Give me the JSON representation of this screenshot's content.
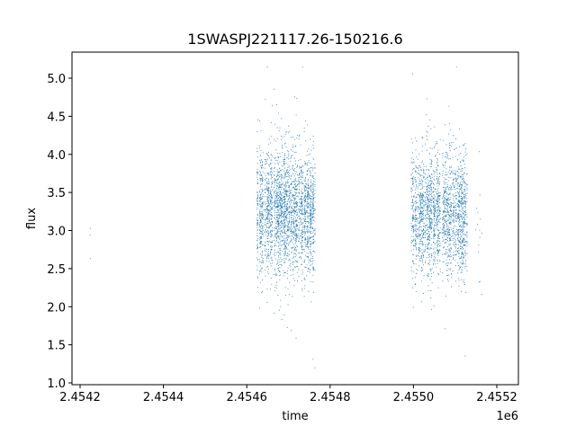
{
  "chart_data": {
    "type": "scatter",
    "title": "1SWASPJ221117.26-150216.6",
    "xlabel": "time",
    "ylabel": "flux",
    "x_offset_label": "1e6",
    "xlim": [
      2454185,
      2455215
    ],
    "ylim": [
      0.98,
      5.35
    ],
    "xticks": [
      2454200,
      2454400,
      2454600,
      2454800,
      2455000,
      2455200
    ],
    "xtick_labels": [
      "2.4542",
      "2.4544",
      "2.4546",
      "2.4548",
      "2.4550",
      "2.4552"
    ],
    "yticks": [
      1.0,
      1.5,
      2.0,
      2.5,
      3.0,
      3.5,
      4.0,
      4.5,
      5.0
    ],
    "ytick_labels": [
      "1.0",
      "1.5",
      "2.0",
      "2.5",
      "3.0",
      "3.5",
      "4.0",
      "4.5",
      "5.0"
    ],
    "color": "#1f77b4",
    "grid": false,
    "series_note": "dense nightly observations; clusters summarized as time range, mean flux, spread",
    "clusters": [
      {
        "t_start": 2454224,
        "t_end": 2454226,
        "flux_mean": 2.95,
        "flux_sd": 0.2,
        "n": 3
      },
      {
        "t_start": 2454625,
        "t_end": 2454765,
        "flux_mean": 3.25,
        "flux_sd": 0.42,
        "n": 2600
      },
      {
        "t_start": 2454995,
        "t_end": 2455130,
        "flux_mean": 3.2,
        "flux_sd": 0.4,
        "n": 2300
      },
      {
        "t_start": 2455150,
        "t_end": 2455165,
        "flux_mean": 3.0,
        "flux_sd": 0.5,
        "n": 15
      }
    ]
  }
}
